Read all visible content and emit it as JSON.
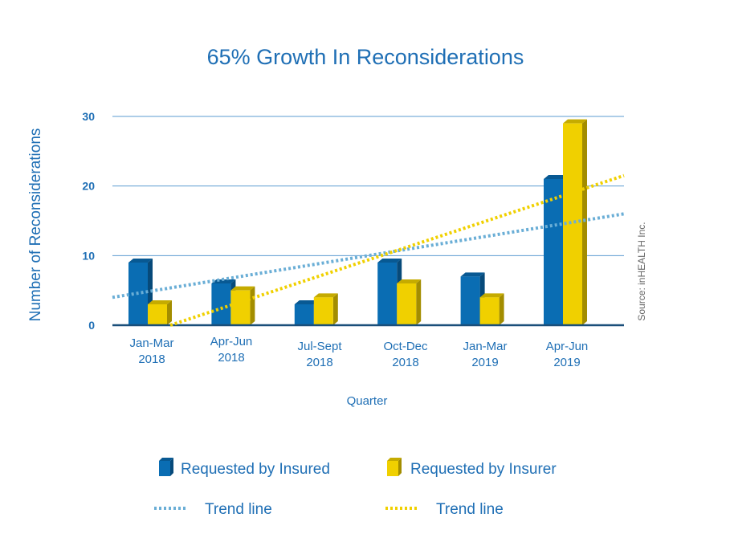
{
  "chart_data": {
    "type": "bar",
    "title": "65% Growth In Reconsiderations",
    "xlabel": "Quarter",
    "ylabel": "Number of Reconsiderations",
    "ylim": [
      0,
      30
    ],
    "yticks": [
      "0",
      "10",
      "20",
      "30"
    ],
    "grid": true,
    "categories": [
      [
        "Jan-Mar",
        "2018"
      ],
      [
        "Apr-Jun",
        "2018"
      ],
      [
        "Jul-Sept",
        "2018"
      ],
      [
        "Oct-Dec",
        "2018"
      ],
      [
        "Jan-Mar",
        "2019"
      ],
      [
        "Apr-Jun",
        "2019"
      ]
    ],
    "series": [
      {
        "name": "Requested by Insured",
        "values": [
          9,
          6,
          3,
          9,
          7,
          21
        ],
        "color": "#0a6db3",
        "trend": [
          4,
          16
        ]
      },
      {
        "name": "Requested by Insurer",
        "values": [
          3,
          5,
          4,
          6,
          4,
          29
        ],
        "color": "#f0d000",
        "trend": [
          0,
          21.5
        ]
      }
    ],
    "legend": {
      "placement": "bottom",
      "items": [
        {
          "label": "Requested by Insured",
          "kind": "bar",
          "color": "#0a6db3"
        },
        {
          "label": "Requested by Insurer",
          "kind": "bar",
          "color": "#f0d000"
        },
        {
          "label": "Trend line",
          "kind": "dotted",
          "color": "#6aaed6"
        },
        {
          "label": "Trend line",
          "kind": "dotted",
          "color": "#f0d000"
        }
      ]
    },
    "source": "Source: inHEALTH  Inc."
  }
}
